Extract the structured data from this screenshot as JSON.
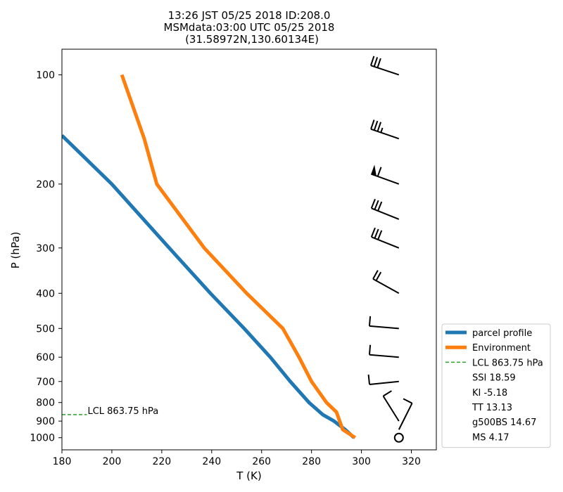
{
  "chart_data": {
    "type": "line",
    "title_lines": [
      "13:26 JST 05/25 2018  ID:208.0",
      "MSMdata:03:00 UTC 05/25 2018",
      "(31.58972N,130.60134E)"
    ],
    "xlabel": "T (K)",
    "ylabel": "P (hPa)",
    "xlim": [
      180,
      330
    ],
    "ylim": [
      1080,
      85
    ],
    "y_scale": "log",
    "x_ticks": [
      180,
      200,
      220,
      240,
      260,
      280,
      300,
      320
    ],
    "y_ticks": [
      100,
      200,
      300,
      400,
      500,
      600,
      700,
      800,
      900,
      1000
    ],
    "grid": false,
    "legend_position": "lower-right",
    "series": [
      {
        "name": "parcel profile",
        "color": "#1f77b4",
        "x": [
          297.0,
          293.5,
          289.0,
          284.5,
          279.0,
          271.5,
          263.5,
          253.0,
          239.5,
          223.0,
          200.0,
          180.0
        ],
        "y": [
          1000,
          950,
          900,
          863.75,
          800,
          700,
          600,
          500,
          400,
          300,
          200,
          147
        ]
      },
      {
        "name": "Environment",
        "color": "#ff7f0e",
        "x": [
          297.5,
          292.5,
          290.0,
          286.0,
          280.0,
          275.0,
          268.5,
          254.0,
          237.0,
          218.0,
          213.0,
          204.0
        ],
        "y": [
          1000,
          950,
          850,
          800,
          700,
          600,
          500,
          400,
          300,
          200,
          150,
          100
        ]
      }
    ],
    "lcl": {
      "label": "LCL 863.75 hPa",
      "pressure": 863.75,
      "color": "#2ca02c",
      "x_range": [
        180,
        190
      ]
    },
    "wind_barbs": [
      {
        "p": 100,
        "u": -30,
        "v": 10
      },
      {
        "p": 150,
        "u": -35,
        "v": 12
      },
      {
        "p": 200,
        "u": -55,
        "v": 20
      },
      {
        "p": 250,
        "u": -30,
        "v": 12
      },
      {
        "p": 300,
        "u": -30,
        "v": 12
      },
      {
        "p": 400,
        "u": -18,
        "v": 10
      },
      {
        "p": 500,
        "u": -12,
        "v": 1
      },
      {
        "p": 600,
        "u": -12,
        "v": 1
      },
      {
        "p": 700,
        "u": -10,
        "v": -1
      },
      {
        "p": 900,
        "u": -5,
        "v": 8
      },
      {
        "p": 950,
        "u": 4,
        "v": 8
      },
      {
        "p": 1000,
        "u": 0,
        "v": 0
      }
    ],
    "legend_entries": [
      {
        "label": "parcel profile",
        "kind": "line",
        "color": "#1f77b4"
      },
      {
        "label": "Environment",
        "kind": "line",
        "color": "#ff7f0e"
      },
      {
        "label": "LCL 863.75 hPa",
        "kind": "dashed",
        "color": "#2ca02c"
      },
      {
        "label": "SSI 18.59",
        "kind": "none"
      },
      {
        "label": "KI -5.18",
        "kind": "none"
      },
      {
        "label": "TT 13.13",
        "kind": "none"
      },
      {
        "label": "g500BS 14.67",
        "kind": "none"
      },
      {
        "label": "MS 4.17",
        "kind": "none"
      }
    ]
  }
}
